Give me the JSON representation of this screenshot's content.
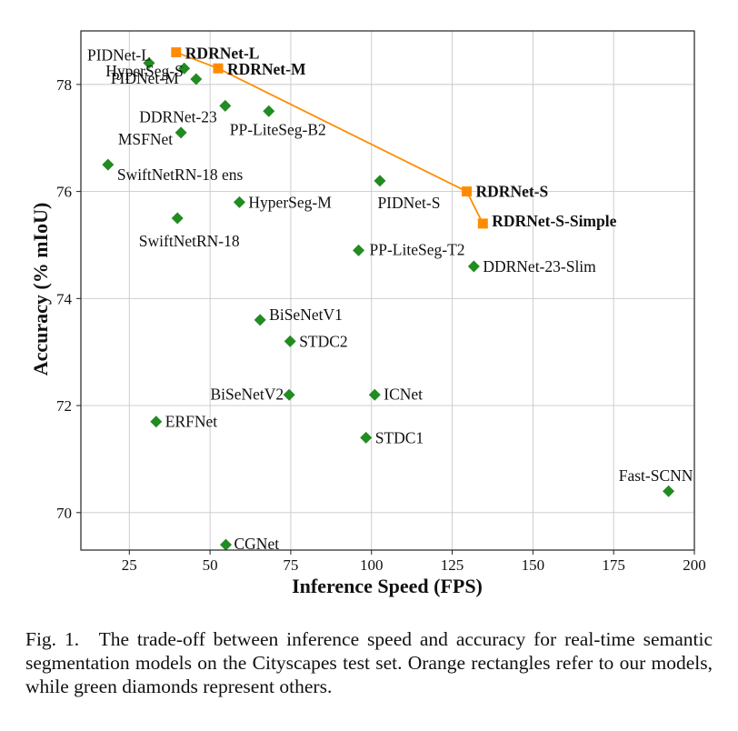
{
  "chart_data": {
    "type": "scatter",
    "xlabel": "Inference Speed (FPS)",
    "ylabel": "Accuracy (% mIoU)",
    "xlim": [
      10,
      200
    ],
    "ylim": [
      69.3,
      79.0
    ],
    "xticks": [
      25,
      50,
      75,
      100,
      125,
      150,
      175,
      200
    ],
    "yticks": [
      70,
      72,
      74,
      76,
      78
    ],
    "grid": true,
    "series": [
      {
        "name": "ours",
        "marker": "square",
        "color": "#ff8c00",
        "connected": true,
        "points": [
          {
            "label": "RDRNet-L",
            "x": 39.5,
            "y": 78.6
          },
          {
            "label": "RDRNet-M",
            "x": 52.5,
            "y": 78.3
          },
          {
            "label": "RDRNet-S",
            "x": 129.5,
            "y": 76.0
          },
          {
            "label": "RDRNet-S-Simple",
            "x": 134.5,
            "y": 75.4
          }
        ]
      },
      {
        "name": "others",
        "marker": "diamond",
        "color": "#228b22",
        "connected": false,
        "points": [
          {
            "label": "PIDNet-L",
            "x": 31.1,
            "y": 78.4
          },
          {
            "label": "PIDNet-M",
            "x": 42.0,
            "y": 78.3
          },
          {
            "label": "HyperSeg-S",
            "x": 45.7,
            "y": 78.1
          },
          {
            "label": "DDRNet-23",
            "x": 54.7,
            "y": 77.6
          },
          {
            "label": "PP-LiteSeg-B2",
            "x": 68.2,
            "y": 77.5
          },
          {
            "label": "MSFNet",
            "x": 41.0,
            "y": 77.1
          },
          {
            "label": "SwiftNetRN-18 ens",
            "x": 18.4,
            "y": 76.5
          },
          {
            "label": "PIDNet-S",
            "x": 102.6,
            "y": 76.2
          },
          {
            "label": "HyperSeg-M",
            "x": 59.1,
            "y": 75.8
          },
          {
            "label": "SwiftNetRN-18",
            "x": 39.9,
            "y": 75.5
          },
          {
            "label": "PP-LiteSeg-T2",
            "x": 96.0,
            "y": 74.9
          },
          {
            "label": "DDRNet-23-Slim",
            "x": 131.7,
            "y": 74.6
          },
          {
            "label": "BiSeNetV1",
            "x": 65.5,
            "y": 73.6
          },
          {
            "label": "STDC2",
            "x": 74.8,
            "y": 73.2
          },
          {
            "label": "BiSeNetV2",
            "x": 74.5,
            "y": 72.2
          },
          {
            "label": "ICNet",
            "x": 101.0,
            "y": 72.2
          },
          {
            "label": "ERFNet",
            "x": 33.3,
            "y": 71.7
          },
          {
            "label": "STDC1",
            "x": 98.3,
            "y": 71.4
          },
          {
            "label": "Fast-SCNN",
            "x": 192.0,
            "y": 70.4
          },
          {
            "label": "CGNet",
            "x": 54.9,
            "y": 69.4
          }
        ]
      }
    ]
  },
  "caption": "Fig. 1. The trade-off between inference speed and accuracy for real-time semantic segmentation models on the Cityscapes test set. Orange rectangles refer to our models, while green diamonds represent others."
}
